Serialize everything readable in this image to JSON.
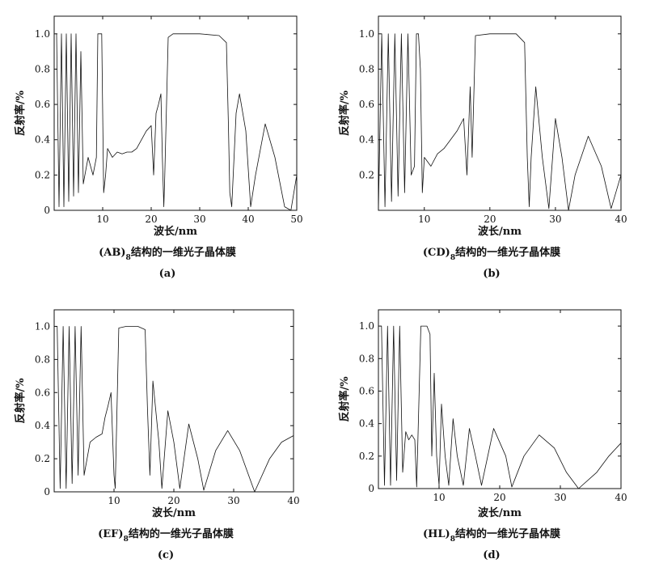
{
  "chart_data": [
    {
      "type": "line",
      "panel": "(a)",
      "caption": "(AB)8结构的一维光子晶体膜",
      "xlabel": "波长/nm",
      "ylabel": "反射率/%",
      "xlim": [
        0,
        50
      ],
      "ylim": [
        0,
        1.1
      ],
      "xticks": [
        "10",
        "20",
        "30",
        "40",
        "50"
      ],
      "yticks": [
        "0",
        "0.2",
        "0.4",
        "0.6",
        "0.8",
        "1.0"
      ],
      "series": [
        {
          "x": [
            0.5,
            1,
            1.5,
            2,
            2.5,
            3,
            3.5,
            4,
            4.5,
            5,
            5.5,
            6,
            7,
            8,
            8.7,
            9,
            9.4,
            9.8,
            10.2,
            10.6,
            11,
            12,
            13,
            14,
            15,
            16,
            17,
            18,
            19,
            20,
            20.5,
            21,
            21.5,
            22,
            22.3,
            22.6,
            22.8,
            23.5,
            24.5,
            26,
            30,
            34,
            35.5,
            35.9,
            36.2,
            36.6,
            37.5,
            38.2,
            39.5,
            40.5,
            41.5,
            43.5,
            45.5,
            47.5,
            48.8,
            50
          ],
          "y": [
            1.0,
            0.02,
            1.0,
            0.02,
            1.0,
            0.05,
            1.0,
            0.08,
            1.0,
            0.1,
            0.9,
            0.15,
            0.3,
            0.2,
            0.3,
            1.0,
            1.0,
            1.0,
            0.1,
            0.2,
            0.35,
            0.3,
            0.33,
            0.32,
            0.33,
            0.33,
            0.35,
            0.4,
            0.45,
            0.48,
            0.2,
            0.55,
            0.6,
            0.66,
            0.3,
            0.02,
            0.2,
            0.98,
            1.0,
            1.0,
            1.0,
            0.99,
            0.95,
            0.5,
            0.1,
            0.02,
            0.55,
            0.66,
            0.45,
            0.02,
            0.2,
            0.49,
            0.3,
            0.02,
            0.0,
            0.2
          ]
        }
      ]
    },
    {
      "type": "line",
      "panel": "(b)",
      "caption": "(CD)8结构的一维光子晶体膜",
      "xlabel": "波长/nm",
      "ylabel": "反射率/%",
      "xlim": [
        3,
        40
      ],
      "ylim": [
        0,
        1.1
      ],
      "xticks": [
        "10",
        "20",
        "30",
        "40"
      ],
      "yticks": [
        "0.2",
        "0.4",
        "0.6",
        "0.8",
        "1.0"
      ],
      "series": [
        {
          "x": [
            3,
            3.5,
            4,
            4.5,
            5,
            5.5,
            6,
            6.5,
            7,
            7.5,
            8,
            8.5,
            8.8,
            9.1,
            9.4,
            9.7,
            10,
            11,
            12,
            13,
            14,
            15,
            16,
            16.5,
            17,
            17.3,
            17.8,
            20,
            24,
            25.3,
            25.7,
            26,
            26.3,
            27,
            28,
            29,
            30,
            31,
            32,
            33,
            35,
            37,
            38.5,
            40
          ],
          "y": [
            0.0,
            1.0,
            0.02,
            1.0,
            0.05,
            1.0,
            0.08,
            1.0,
            0.1,
            1.0,
            0.2,
            0.25,
            1.0,
            1.0,
            0.8,
            0.1,
            0.3,
            0.25,
            0.32,
            0.35,
            0.4,
            0.45,
            0.52,
            0.2,
            0.7,
            0.3,
            0.99,
            1.0,
            1.0,
            0.95,
            0.3,
            0.02,
            0.3,
            0.7,
            0.3,
            0.01,
            0.52,
            0.3,
            0.0,
            0.2,
            0.42,
            0.25,
            0.01,
            0.2
          ]
        }
      ]
    },
    {
      "type": "line",
      "panel": "(c)",
      "caption": "(EF)8结构的一维光子晶体膜",
      "xlabel": "波长/nm",
      "ylabel": "反射率/%",
      "xlim": [
        0,
        40
      ],
      "ylim": [
        0,
        1.1
      ],
      "xticks": [
        "10",
        "20",
        "30",
        "40"
      ],
      "yticks": [
        "0",
        "0.2",
        "0.4",
        "0.6",
        "0.8",
        "1.0"
      ],
      "series": [
        {
          "x": [
            0.5,
            1,
            1.5,
            2,
            2.5,
            3,
            3.5,
            4,
            4.5,
            5,
            6,
            7,
            8,
            8.5,
            9,
            9.5,
            10,
            10.2,
            10.8,
            12,
            14,
            15.2,
            15.6,
            16,
            16.5,
            17.5,
            18,
            19,
            20,
            21,
            22.5,
            24,
            25,
            27,
            29,
            31,
            33.5,
            36,
            38,
            40
          ],
          "y": [
            1.0,
            0.02,
            1.0,
            0.02,
            1.0,
            0.05,
            1.0,
            0.1,
            1.0,
            0.1,
            0.3,
            0.33,
            0.35,
            0.45,
            0.52,
            0.6,
            0.1,
            0.02,
            0.99,
            1.0,
            1.0,
            0.98,
            0.5,
            0.1,
            0.67,
            0.3,
            0.02,
            0.49,
            0.3,
            0.02,
            0.41,
            0.2,
            0.01,
            0.25,
            0.37,
            0.25,
            0.0,
            0.2,
            0.3,
            0.34
          ]
        }
      ]
    },
    {
      "type": "line",
      "panel": "(d)",
      "caption": "(HL)8结构的一维光子晶体膜",
      "xlabel": "波长/nm",
      "ylabel": "反射率/%",
      "xlim": [
        0,
        40
      ],
      "ylim": [
        0,
        1.1
      ],
      "xticks": [
        "10",
        "20",
        "30",
        "40"
      ],
      "yticks": [
        "0",
        "0.2",
        "0.4",
        "0.6",
        "0.8",
        "1.0"
      ],
      "series": [
        {
          "x": [
            0.5,
            1,
            1.5,
            2,
            2.5,
            3,
            3.5,
            4,
            4.5,
            5,
            5.5,
            6,
            6.3,
            7,
            8,
            8.5,
            8.8,
            9.2,
            9.6,
            10,
            10.4,
            11,
            11.6,
            12.3,
            13,
            14,
            15,
            16,
            17,
            19,
            21,
            22,
            24,
            26.5,
            29,
            31,
            33,
            36,
            38,
            40
          ],
          "y": [
            1.0,
            0.02,
            1.0,
            0.02,
            1.0,
            0.05,
            1.0,
            0.1,
            0.35,
            0.3,
            0.33,
            0.3,
            0.01,
            1.0,
            1.0,
            0.95,
            0.2,
            0.71,
            0.2,
            0.02,
            0.52,
            0.2,
            0.02,
            0.43,
            0.2,
            0.02,
            0.37,
            0.2,
            0.02,
            0.37,
            0.2,
            0.01,
            0.2,
            0.33,
            0.25,
            0.1,
            0.0,
            0.1,
            0.2,
            0.28
          ]
        }
      ]
    }
  ]
}
